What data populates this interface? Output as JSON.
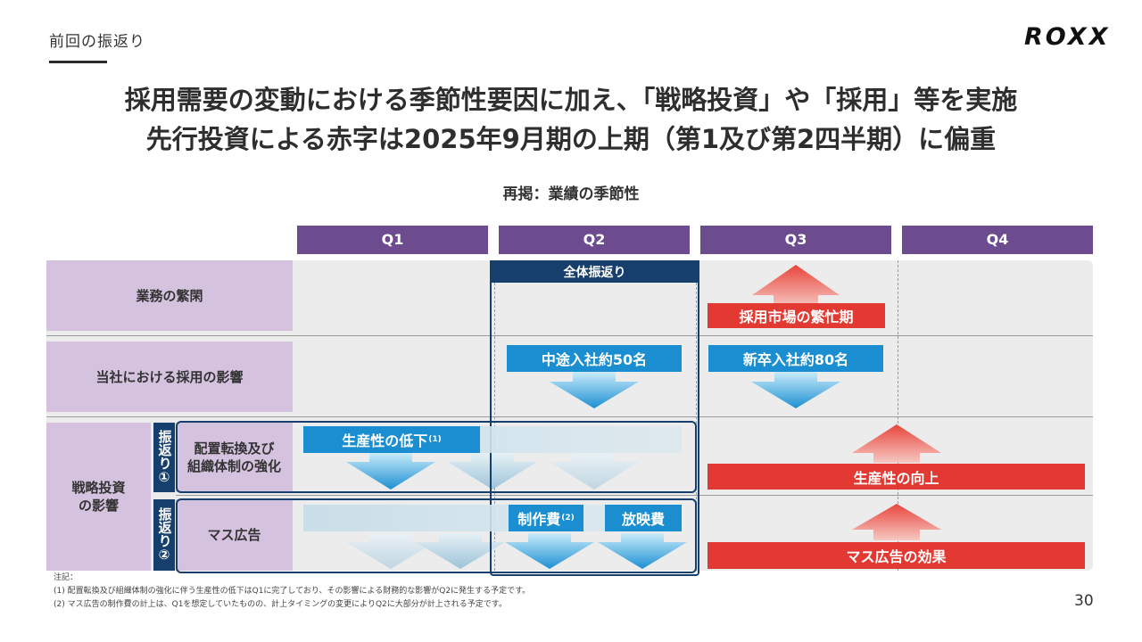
{
  "header": {
    "section": "前回の振返り",
    "logo": "ROXX",
    "headline_line1": "採用需要の変動における季節性要因に加え、「戦略投資」や「採用」等を実施",
    "headline_line2": "先行投資による赤字は2025年9月期の上期（第1及び第2四半期）に偏重",
    "subtitle": "再掲：業績の季節性"
  },
  "quarters": [
    "Q1",
    "Q2",
    "Q3",
    "Q4"
  ],
  "rows": {
    "business": "業務の繁閑",
    "hiring": "当社における採用の影響",
    "strategic": "戦略投資\nの影響",
    "sub1": "配置転換及び\n組織体制の強化",
    "sub2": "マス広告"
  },
  "tags": {
    "tag1_chars": "振返り",
    "tag1_num": "①",
    "tag2_chars": "振返り",
    "tag2_num": "②"
  },
  "boxes": {
    "review_all": "全体振返り",
    "busy_season": "採用市場の繁忙期",
    "mid_career": "中途入社約50名",
    "new_grad": "新卒入社約80名",
    "productivity_down": "生産性の低下",
    "productivity_down_note": "(1)",
    "productivity_up": "生産性の向上",
    "production_cost": "制作費",
    "production_cost_note": "(2)",
    "broadcast_cost": "放映費",
    "mass_ad_effect": "マス広告の効果"
  },
  "notes": {
    "label": "注記：",
    "note1": "(1) 配置転換及び組織体制の強化に伴う生産性の低下はQ1に完了しており、その影響による財務的な影響がQ2に発生する予定です。",
    "note2": "(2) マス広告の制作費の計上は、Q1を想定していたものの、計上タイミングの変更によりQ2に大部分が計上される予定です。"
  },
  "page_number": "30",
  "colors": {
    "quarter_header": "#6d4b8f",
    "row_label": "#d4c2df",
    "navy": "#163f6e",
    "blue": "#1a8ed0",
    "red": "#e23a32"
  }
}
